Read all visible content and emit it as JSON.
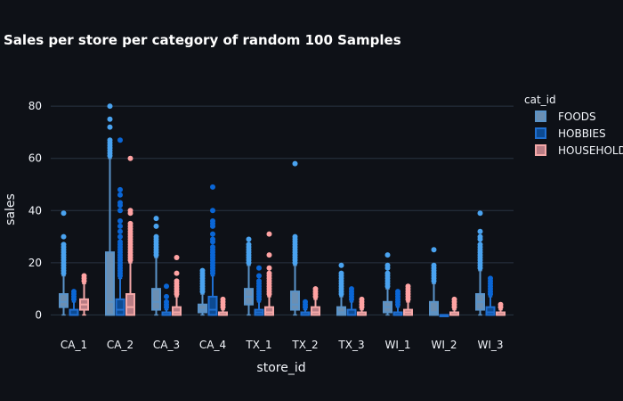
{
  "chart_data": {
    "type": "box",
    "title": "Sales per store per category of random 100 Samples",
    "xlabel": "store_id",
    "ylabel": "sales",
    "ylim": [
      -6,
      92
    ],
    "yticks": [
      0,
      20,
      40,
      60,
      80
    ],
    "grid": true,
    "legend": {
      "title": "cat_id",
      "placement": "right"
    },
    "categories": [
      "CA_1",
      "CA_2",
      "CA_3",
      "CA_4",
      "TX_1",
      "TX_2",
      "TX_3",
      "WI_1",
      "WI_2",
      "WI_3"
    ],
    "series": [
      {
        "name": "FOODS",
        "color": "#5a93c8",
        "fill": "#6b8fb3",
        "outlier_color": "#4aa3f0",
        "boxes": [
          {
            "q1": 3,
            "median": 5,
            "q3": 8,
            "lower": 0,
            "upper": 15,
            "outliers": [
              16,
              17,
              18,
              19,
              20,
              21,
              22,
              23,
              24,
              25,
              26,
              27,
              30,
              39
            ]
          },
          {
            "q1": 0,
            "median": 5,
            "q3": 24,
            "lower": 0,
            "upper": 60,
            "outliers": [
              61,
              62,
              63,
              64,
              65,
              66,
              67,
              72,
              75,
              80
            ]
          },
          {
            "q1": 2,
            "median": 5,
            "q3": 10,
            "lower": 0,
            "upper": 22,
            "outliers": [
              23,
              24,
              25,
              26,
              27,
              28,
              29,
              30,
              34,
              37
            ]
          },
          {
            "q1": 1,
            "median": 2,
            "q3": 4,
            "lower": 0,
            "upper": 8,
            "outliers": [
              9,
              10,
              11,
              12,
              13,
              14,
              15,
              16,
              17
            ]
          },
          {
            "q1": 4,
            "median": 7,
            "q3": 10,
            "lower": 0,
            "upper": 19,
            "outliers": [
              20,
              21,
              22,
              23,
              24,
              25,
              26,
              27,
              29
            ]
          },
          {
            "q1": 2,
            "median": 4,
            "q3": 9,
            "lower": 0,
            "upper": 19,
            "outliers": [
              20,
              21,
              22,
              23,
              24,
              25,
              26,
              27,
              28,
              29,
              30,
              58
            ]
          },
          {
            "q1": 0,
            "median": 1,
            "q3": 3,
            "lower": 0,
            "upper": 7,
            "outliers": [
              8,
              9,
              10,
              11,
              12,
              13,
              14,
              15,
              16,
              19
            ]
          },
          {
            "q1": 1,
            "median": 3,
            "q3": 5,
            "lower": 0,
            "upper": 10,
            "outliers": [
              11,
              12,
              13,
              14,
              15,
              16,
              18,
              19,
              23
            ]
          },
          {
            "q1": 0,
            "median": 1,
            "q3": 5,
            "lower": 0,
            "upper": 12,
            "outliers": [
              13,
              14,
              15,
              16,
              17,
              18,
              19,
              25
            ]
          },
          {
            "q1": 2,
            "median": 5,
            "q3": 8,
            "lower": 0,
            "upper": 17,
            "outliers": [
              18,
              19,
              20,
              21,
              22,
              23,
              24,
              25,
              26,
              27,
              29,
              30,
              32,
              39
            ]
          }
        ]
      },
      {
        "name": "HOBBIES",
        "color": "#1f6fd1",
        "fill": "#0c4a92",
        "outlier_color": "#0a66d6",
        "boxes": [
          {
            "q1": 0,
            "median": 0,
            "q3": 2,
            "lower": 0,
            "upper": 5,
            "outliers": [
              6,
              7,
              8,
              9
            ]
          },
          {
            "q1": 0,
            "median": 2,
            "q3": 6,
            "lower": 0,
            "upper": 14,
            "outliers": [
              15,
              16,
              17,
              18,
              19,
              20,
              21,
              22,
              23,
              24,
              25,
              26,
              27,
              28,
              30,
              32,
              34,
              36,
              40,
              42,
              43,
              46,
              48,
              67
            ]
          },
          {
            "q1": 0,
            "median": 0,
            "q3": 1,
            "lower": 0,
            "upper": 2,
            "outliers": [
              3,
              4,
              5,
              7,
              11
            ]
          },
          {
            "q1": 0,
            "median": 2,
            "q3": 7,
            "lower": 0,
            "upper": 15,
            "outliers": [
              16,
              17,
              18,
              19,
              20,
              21,
              22,
              23,
              24,
              25,
              26,
              28,
              29,
              31,
              34,
              35,
              36,
              40,
              49
            ]
          },
          {
            "q1": 0,
            "median": 1,
            "q3": 2,
            "lower": 0,
            "upper": 5,
            "outliers": [
              6,
              7,
              8,
              9,
              10,
              11,
              12,
              13,
              15,
              18
            ]
          },
          {
            "q1": 0,
            "median": 0,
            "q3": 1,
            "lower": 0,
            "upper": 2,
            "outliers": [
              3,
              4,
              5
            ]
          },
          {
            "q1": 0,
            "median": 0,
            "q3": 2,
            "lower": 0,
            "upper": 5,
            "outliers": [
              6,
              7,
              8,
              9,
              10
            ]
          },
          {
            "q1": 0,
            "median": 0,
            "q3": 1,
            "lower": 0,
            "upper": 3,
            "outliers": [
              4,
              5,
              6,
              7,
              8,
              9
            ]
          },
          {
            "q1": 0,
            "median": 0,
            "q3": 0,
            "lower": 0,
            "upper": 0,
            "outliers": []
          },
          {
            "q1": 0,
            "median": 1,
            "q3": 3,
            "lower": 0,
            "upper": 7,
            "outliers": [
              8,
              9,
              10,
              11,
              12,
              13,
              14
            ]
          }
        ]
      },
      {
        "name": "HOUSEHOLD",
        "color": "#f4a8a8",
        "fill": "#b97c84",
        "outlier_color": "#ffa3a3",
        "boxes": [
          {
            "q1": 2,
            "median": 4,
            "q3": 6,
            "lower": 0,
            "upper": 12,
            "outliers": [
              13,
              14,
              15
            ]
          },
          {
            "q1": 0,
            "median": 3,
            "q3": 8,
            "lower": 0,
            "upper": 20,
            "outliers": [
              21,
              22,
              23,
              24,
              25,
              26,
              27,
              28,
              29,
              30,
              31,
              32,
              33,
              34,
              35,
              39,
              40,
              60
            ]
          },
          {
            "q1": 0,
            "median": 1,
            "q3": 3,
            "lower": 0,
            "upper": 7,
            "outliers": [
              8,
              9,
              10,
              11,
              12,
              13,
              16,
              22
            ]
          },
          {
            "q1": 0,
            "median": 0,
            "q3": 1,
            "lower": 0,
            "upper": 2,
            "outliers": [
              3,
              4,
              5,
              6
            ]
          },
          {
            "q1": 0,
            "median": 1,
            "q3": 3,
            "lower": 0,
            "upper": 7,
            "outliers": [
              8,
              9,
              10,
              11,
              12,
              13,
              14,
              15,
              16,
              18,
              23,
              31
            ]
          },
          {
            "q1": 0,
            "median": 1,
            "q3": 3,
            "lower": 0,
            "upper": 6,
            "outliers": [
              7,
              8,
              9,
              10
            ]
          },
          {
            "q1": 0,
            "median": 0,
            "q3": 1,
            "lower": 0,
            "upper": 2,
            "outliers": [
              3,
              4,
              5,
              6
            ]
          },
          {
            "q1": 0,
            "median": 1,
            "q3": 2,
            "lower": 0,
            "upper": 5,
            "outliers": [
              6,
              7,
              8,
              9,
              10,
              11
            ]
          },
          {
            "q1": 0,
            "median": 0,
            "q3": 1,
            "lower": 0,
            "upper": 2,
            "outliers": [
              3,
              4,
              5,
              6
            ]
          },
          {
            "q1": 0,
            "median": 0,
            "q3": 1,
            "lower": 0,
            "upper": 2,
            "outliers": [
              3,
              4
            ]
          }
        ]
      }
    ]
  }
}
